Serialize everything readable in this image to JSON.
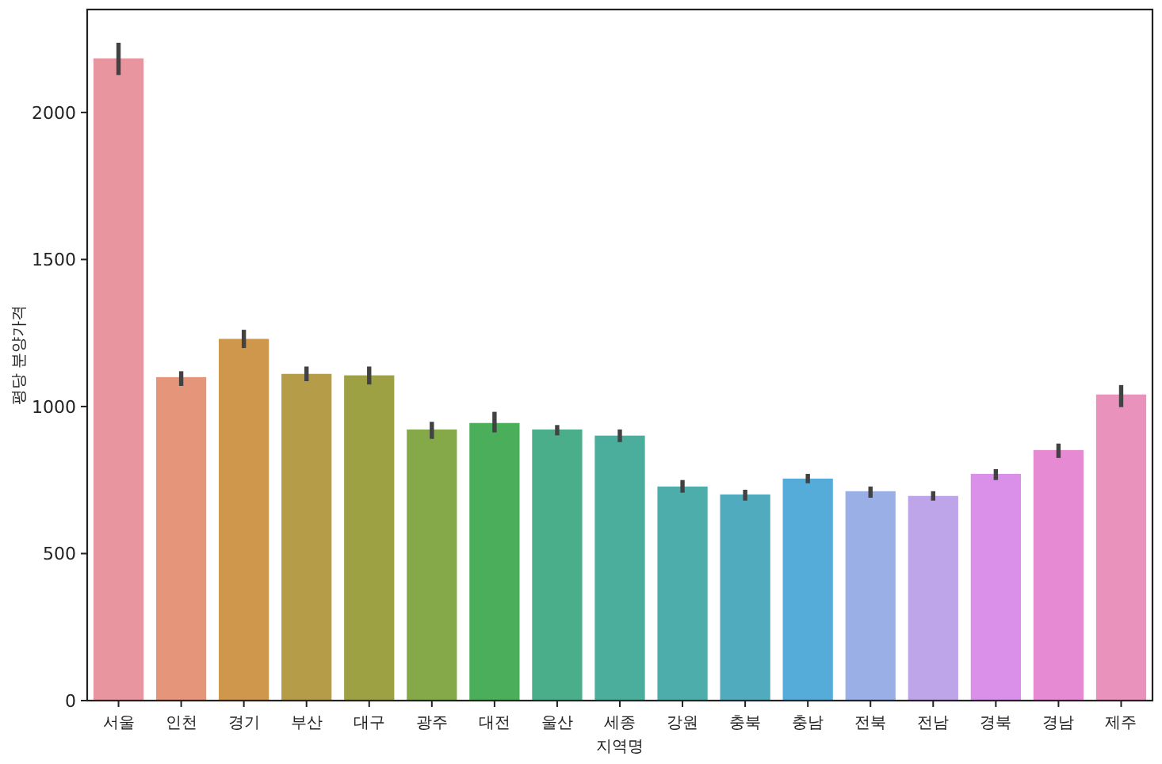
{
  "chart_data": {
    "type": "bar",
    "xlabel": "지역명",
    "ylabel": "평당 분양가격",
    "categories": [
      "서울",
      "인천",
      "경기",
      "부산",
      "대구",
      "광주",
      "대전",
      "울산",
      "세종",
      "강원",
      "충북",
      "충남",
      "전북",
      "전남",
      "경북",
      "경남",
      "제주"
    ],
    "values": [
      2184,
      1100,
      1230,
      1111,
      1106,
      922,
      944,
      922,
      901,
      728,
      701,
      755,
      712,
      696,
      771,
      852,
      1041
    ],
    "errors": [
      [
        2127,
        2237
      ],
      [
        1070,
        1120
      ],
      [
        1199,
        1261
      ],
      [
        1086,
        1136
      ],
      [
        1075,
        1136
      ],
      [
        890,
        948
      ],
      [
        912,
        982
      ],
      [
        902,
        937
      ],
      [
        879,
        922
      ],
      [
        707,
        750
      ],
      [
        680,
        717
      ],
      [
        739,
        771
      ],
      [
        690,
        728
      ],
      [
        680,
        712
      ],
      [
        750,
        787
      ],
      [
        825,
        874
      ],
      [
        998,
        1073
      ]
    ],
    "colors": [
      "#e9959f",
      "#e5967a",
      "#ce974c",
      "#b49c48",
      "#9ea044",
      "#85a949",
      "#4aae5a",
      "#4aae8a",
      "#4bad9b",
      "#4dadab",
      "#50abbe",
      "#56acd9",
      "#9aafe6",
      "#bea4e8",
      "#da90e8",
      "#e68bd3",
      "#e992bb"
    ],
    "ylim": [
      0,
      2350
    ],
    "yticks": [
      0,
      500,
      1000,
      1500,
      2000
    ],
    "grid": false
  }
}
